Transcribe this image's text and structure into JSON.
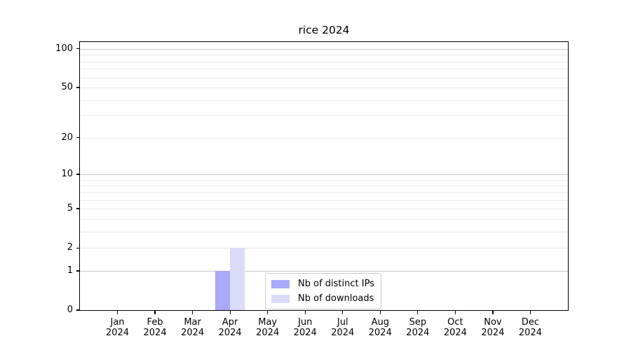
{
  "figure": {
    "background": "#ffffff"
  },
  "chart_data": {
    "type": "bar",
    "title": "rice 2024",
    "categories": [
      "Jan",
      "Feb",
      "Mar",
      "Apr",
      "May",
      "Jun",
      "Jul",
      "Aug",
      "Sep",
      "Oct",
      "Nov",
      "Dec"
    ],
    "x_tick_second_line": "2024",
    "series": [
      {
        "name": "Nb of distinct IPs",
        "color": "#a9a9f8",
        "values": [
          0,
          0,
          0,
          1,
          0,
          0,
          0,
          0,
          0,
          0,
          0,
          0
        ]
      },
      {
        "name": "Nb of downloads",
        "color": "#dbdbf8",
        "values": [
          0,
          0,
          0,
          2,
          0,
          0,
          0,
          0,
          0,
          0,
          0,
          0
        ]
      }
    ],
    "xlabel": "",
    "ylabel": "",
    "y_scale": "log1p",
    "ylim": [
      0,
      113
    ],
    "y_tick_labels": [
      0,
      1,
      2,
      5,
      10,
      20,
      50,
      100
    ],
    "y_major_gridlines": [
      1,
      10,
      100
    ],
    "y_minor_gridlines": [
      2,
      3,
      4,
      5,
      6,
      7,
      8,
      9,
      20,
      30,
      40,
      50,
      60,
      70,
      80,
      90
    ],
    "grid": true,
    "legend_position": "bottom-center",
    "colors": {
      "major_grid": "#c6c6c6",
      "minor_grid": "#e9e9e9",
      "spine": "#000000",
      "legend_border": "#cccccc",
      "text": "#000000"
    }
  }
}
